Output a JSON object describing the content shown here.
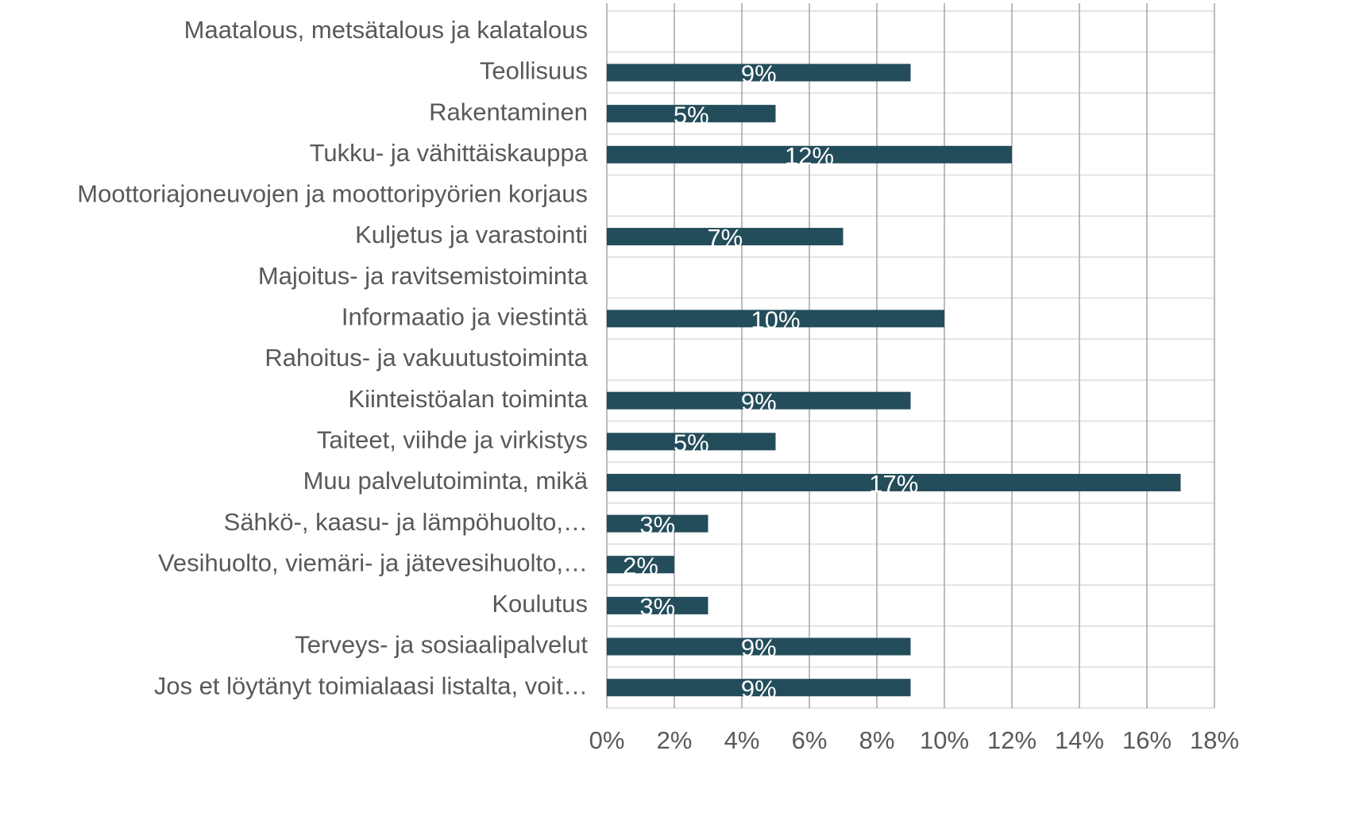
{
  "chart_data": {
    "type": "bar",
    "orientation": "horizontal",
    "categories": [
      "Maatalous, metsätalous ja kalatalous",
      "Teollisuus",
      "Rakentaminen",
      "Tukku- ja vähittäiskauppa",
      "Moottoriajoneuvojen ja moottoripyörien korjaus",
      "Kuljetus ja varastointi",
      "Majoitus- ja ravitsemistoiminta",
      "Informaatio ja viestintä",
      "Rahoitus- ja vakuutustoiminta",
      "Kiinteistöalan toiminta",
      "Taiteet, viihde ja virkistys",
      "Muu palvelutoiminta, mikä",
      "Sähkö-, kaasu- ja lämpöhuolto,…",
      "Vesihuolto, viemäri- ja jätevesihuolto,…",
      "Koulutus",
      "Terveys- ja sosiaalipalvelut",
      "Jos et löytänyt toimialaasi listalta, voit…"
    ],
    "values": [
      0,
      9,
      5,
      12,
      0,
      7,
      0,
      10,
      0,
      9,
      5,
      17,
      3,
      2,
      3,
      9,
      9
    ],
    "value_labels": [
      null,
      "9%",
      "5%",
      "12%",
      null,
      "7%",
      null,
      "10%",
      null,
      "9%",
      "5%",
      "17%",
      "3%",
      "2%",
      "3%",
      "9%",
      "9%"
    ],
    "color": "#234d5a",
    "xlim": [
      0,
      18
    ],
    "xticks": [
      {
        "value": 0,
        "label": "0%"
      },
      {
        "value": 2,
        "label": "2%"
      },
      {
        "value": 4,
        "label": "4%"
      },
      {
        "value": 6,
        "label": "6%"
      },
      {
        "value": 8,
        "label": "8%"
      },
      {
        "value": 10,
        "label": "10%"
      },
      {
        "value": 12,
        "label": "12%"
      },
      {
        "value": 14,
        "label": "14%"
      },
      {
        "value": 16,
        "label": "16%"
      },
      {
        "value": 18,
        "label": "18%"
      }
    ],
    "grid": true
  }
}
